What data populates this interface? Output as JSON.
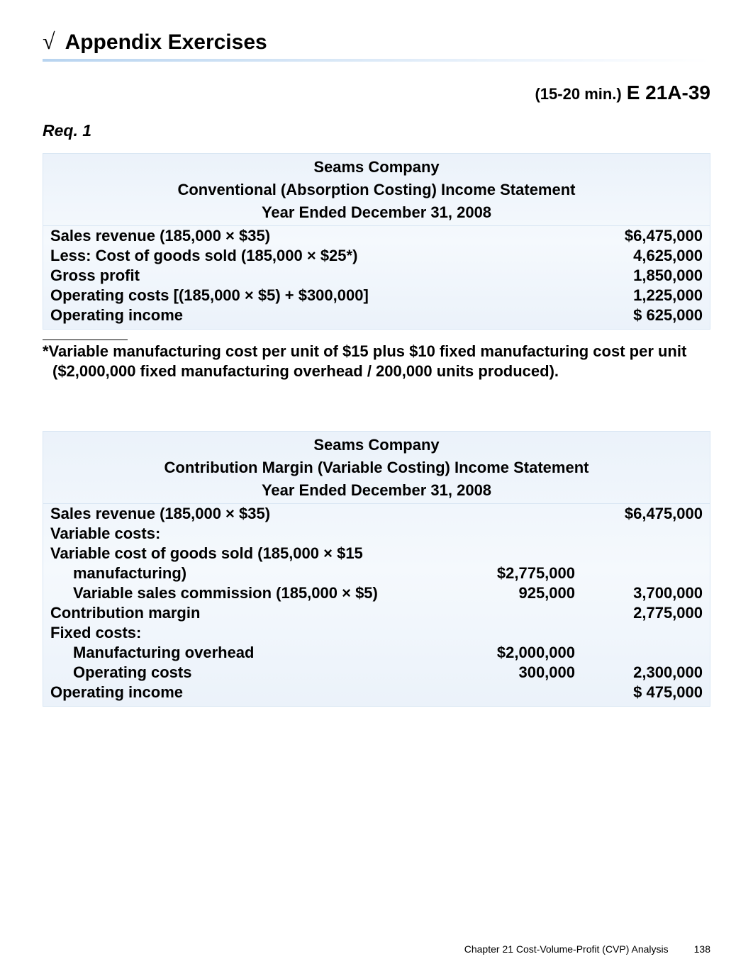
{
  "title": {
    "check": "√",
    "text": "Appendix Exercises"
  },
  "subheading": {
    "minutes": "(15-20 min.)",
    "exercise": "E 21A-39"
  },
  "req": "Req. 1",
  "table1": {
    "h1": "Seams Company",
    "h2": "Conventional (Absorption Costing) Income Statement",
    "h3": "Year Ended December 31, 2008",
    "rows": [
      {
        "label": "Sales revenue (185,000 × $35)",
        "value": "$6,475,000"
      },
      {
        "label": "Less: Cost of goods sold (185,000 × $25*)",
        "value": "4,625,000"
      },
      {
        "label": "Gross profit",
        "value": "1,850,000"
      },
      {
        "label": "Operating costs [(185,000 × $5) + $300,000]",
        "value": "1,225,000"
      },
      {
        "label": "Operating income",
        "value": "$   625,000"
      }
    ]
  },
  "footnote": "*Variable manufacturing cost per unit of $15 plus $10 fixed manufacturing cost per unit ($2,000,000 fixed manufacturing overhead / 200,000 units produced).",
  "table2": {
    "h1": "Seams Company",
    "h2": "Contribution Margin (Variable Costing) Income Statement",
    "h3": "Year Ended December 31, 2008",
    "rows": [
      {
        "label": "Sales revenue (185,000 × $35)",
        "mid": "",
        "right": "$6,475,000"
      },
      {
        "label": "Variable costs:",
        "mid": "",
        "right": ""
      },
      {
        "label": "Variable cost of goods sold (185,000 × $15",
        "mid": "",
        "right": ""
      },
      {
        "label": "manufacturing)",
        "indent": true,
        "mid": "$2,775,000",
        "right": ""
      },
      {
        "label": "Variable sales commission (185,000 × $5)",
        "indent": true,
        "mid": "925,000",
        "right": "3,700,000"
      },
      {
        "label": "Contribution margin",
        "mid": "",
        "right": "2,775,000"
      },
      {
        "label": "Fixed costs:",
        "mid": "",
        "right": ""
      },
      {
        "label": "Manufacturing overhead",
        "indent": true,
        "mid": "$2,000,000",
        "right": ""
      },
      {
        "label": "Operating costs",
        "indent": true,
        "mid": "300,000",
        "right": "2,300,000"
      },
      {
        "label": "Operating income",
        "mid": "",
        "right": "$   475,000"
      }
    ]
  },
  "footer": {
    "chapter": "Chapter 21    Cost-Volume-Profit (CVP) Analysis",
    "page": "138"
  }
}
